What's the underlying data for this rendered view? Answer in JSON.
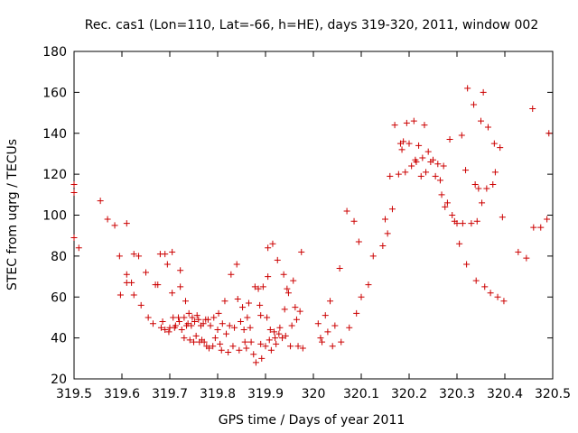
{
  "chart_data": {
    "type": "scatter",
    "title": "Rec. cas1 (Lon=110, Lat=-66, h=HE), days 319-320, 2011, window 002",
    "xlabel": "GPS time / Days of year 2011",
    "ylabel": "STEC from uqrg / TECUs",
    "xlim": [
      319.5,
      320.5
    ],
    "ylim": [
      20,
      180
    ],
    "x_ticks": [
      "319.5",
      "319.6",
      "319.7",
      "319.8",
      "319.9",
      "320",
      "320.1",
      "320.2",
      "320.3",
      "320.4",
      "320.5"
    ],
    "y_ticks": [
      "20",
      "40",
      "60",
      "80",
      "100",
      "120",
      "140",
      "160",
      "180"
    ],
    "grid": false,
    "marker": "plus",
    "color": "#cc0000",
    "points": [
      [
        319.5,
        115
      ],
      [
        319.5,
        111
      ],
      [
        319.5,
        89
      ],
      [
        319.51,
        84
      ],
      [
        319.555,
        107
      ],
      [
        319.57,
        98
      ],
      [
        319.585,
        95
      ],
      [
        319.595,
        80
      ],
      [
        319.597,
        61
      ],
      [
        319.61,
        96
      ],
      [
        319.61,
        71
      ],
      [
        319.61,
        67
      ],
      [
        319.62,
        67
      ],
      [
        319.625,
        81
      ],
      [
        319.625,
        61
      ],
      [
        319.635,
        80
      ],
      [
        319.64,
        56
      ],
      [
        319.65,
        72
      ],
      [
        319.655,
        50
      ],
      [
        319.665,
        47
      ],
      [
        319.67,
        66
      ],
      [
        319.675,
        66
      ],
      [
        319.68,
        81
      ],
      [
        319.682,
        45
      ],
      [
        319.685,
        48
      ],
      [
        319.69,
        81
      ],
      [
        319.69,
        44
      ],
      [
        319.695,
        76
      ],
      [
        319.698,
        43
      ],
      [
        319.7,
        45
      ],
      [
        319.705,
        82
      ],
      [
        319.705,
        62
      ],
      [
        319.707,
        50
      ],
      [
        319.71,
        45
      ],
      [
        319.712,
        46
      ],
      [
        319.718,
        50
      ],
      [
        319.72,
        48
      ],
      [
        319.722,
        73
      ],
      [
        319.722,
        65
      ],
      [
        319.725,
        44
      ],
      [
        319.73,
        50
      ],
      [
        319.73,
        40
      ],
      [
        319.733,
        58
      ],
      [
        319.735,
        46
      ],
      [
        319.738,
        47
      ],
      [
        319.74,
        52
      ],
      [
        319.742,
        39
      ],
      [
        319.745,
        46
      ],
      [
        319.747,
        50
      ],
      [
        319.75,
        38
      ],
      [
        319.752,
        48
      ],
      [
        319.755,
        41
      ],
      [
        319.757,
        51
      ],
      [
        319.76,
        49
      ],
      [
        319.762,
        38
      ],
      [
        319.765,
        46
      ],
      [
        319.767,
        39
      ],
      [
        319.77,
        47
      ],
      [
        319.772,
        38
      ],
      [
        319.775,
        49
      ],
      [
        319.777,
        36
      ],
      [
        319.78,
        49
      ],
      [
        319.782,
        35
      ],
      [
        319.785,
        46
      ],
      [
        319.79,
        36
      ],
      [
        319.792,
        50
      ],
      [
        319.795,
        40
      ],
      [
        319.8,
        44
      ],
      [
        319.802,
        52
      ],
      [
        319.805,
        37
      ],
      [
        319.808,
        34
      ],
      [
        319.81,
        47
      ],
      [
        319.815,
        58
      ],
      [
        319.818,
        42
      ],
      [
        319.822,
        33
      ],
      [
        319.825,
        46
      ],
      [
        319.828,
        71
      ],
      [
        319.832,
        36
      ],
      [
        319.835,
        45
      ],
      [
        319.84,
        76
      ],
      [
        319.842,
        59
      ],
      [
        319.845,
        34
      ],
      [
        319.848,
        48
      ],
      [
        319.852,
        55
      ],
      [
        319.855,
        44
      ],
      [
        319.857,
        38
      ],
      [
        319.86,
        35
      ],
      [
        319.862,
        50
      ],
      [
        319.865,
        57
      ],
      [
        319.868,
        45
      ],
      [
        319.87,
        38
      ],
      [
        319.875,
        32
      ],
      [
        319.878,
        65
      ],
      [
        319.88,
        28
      ],
      [
        319.885,
        64
      ],
      [
        319.888,
        56
      ],
      [
        319.89,
        51
      ],
      [
        319.89,
        37
      ],
      [
        319.892,
        30
      ],
      [
        319.895,
        65
      ],
      [
        319.9,
        36
      ],
      [
        319.903,
        50
      ],
      [
        319.905,
        84
      ],
      [
        319.905,
        70
      ],
      [
        319.908,
        39
      ],
      [
        319.91,
        44
      ],
      [
        319.912,
        34
      ],
      [
        319.915,
        86
      ],
      [
        319.918,
        43
      ],
      [
        319.92,
        40
      ],
      [
        319.922,
        37
      ],
      [
        319.925,
        78
      ],
      [
        319.928,
        42
      ],
      [
        319.93,
        45
      ],
      [
        319.935,
        40
      ],
      [
        319.938,
        71
      ],
      [
        319.94,
        54
      ],
      [
        319.942,
        41
      ],
      [
        319.945,
        64
      ],
      [
        319.948,
        62
      ],
      [
        319.952,
        36
      ],
      [
        319.955,
        46
      ],
      [
        319.958,
        68
      ],
      [
        319.962,
        55
      ],
      [
        319.965,
        49
      ],
      [
        319.968,
        36
      ],
      [
        319.972,
        53
      ],
      [
        319.975,
        82
      ],
      [
        319.978,
        35
      ],
      [
        320.01,
        47
      ],
      [
        320.015,
        40
      ],
      [
        320.018,
        38
      ],
      [
        320.025,
        51
      ],
      [
        320.03,
        43
      ],
      [
        320.035,
        58
      ],
      [
        320.04,
        36
      ],
      [
        320.045,
        46
      ],
      [
        320.055,
        74
      ],
      [
        320.058,
        38
      ],
      [
        320.07,
        102
      ],
      [
        320.075,
        45
      ],
      [
        320.085,
        97
      ],
      [
        320.09,
        52
      ],
      [
        320.095,
        87
      ],
      [
        320.1,
        60
      ],
      [
        320.115,
        66
      ],
      [
        320.125,
        80
      ],
      [
        320.145,
        85
      ],
      [
        320.15,
        98
      ],
      [
        320.155,
        91
      ],
      [
        320.16,
        119
      ],
      [
        320.165,
        103
      ],
      [
        320.17,
        144
      ],
      [
        320.178,
        120
      ],
      [
        320.182,
        135
      ],
      [
        320.185,
        132
      ],
      [
        320.188,
        136
      ],
      [
        320.192,
        121
      ],
      [
        320.195,
        145
      ],
      [
        320.2,
        135
      ],
      [
        320.205,
        124
      ],
      [
        320.21,
        146
      ],
      [
        320.213,
        127
      ],
      [
        320.215,
        126
      ],
      [
        320.22,
        134
      ],
      [
        320.225,
        119
      ],
      [
        320.228,
        128
      ],
      [
        320.232,
        144
      ],
      [
        320.235,
        121
      ],
      [
        320.24,
        131
      ],
      [
        320.245,
        126
      ],
      [
        320.25,
        127
      ],
      [
        320.255,
        119
      ],
      [
        320.26,
        125
      ],
      [
        320.265,
        117
      ],
      [
        320.268,
        110
      ],
      [
        320.272,
        124
      ],
      [
        320.275,
        104
      ],
      [
        320.28,
        106
      ],
      [
        320.285,
        137
      ],
      [
        320.29,
        100
      ],
      [
        320.295,
        97
      ],
      [
        320.3,
        96
      ],
      [
        320.305,
        86
      ],
      [
        320.31,
        139
      ],
      [
        320.312,
        96
      ],
      [
        320.318,
        122
      ],
      [
        320.32,
        76
      ],
      [
        320.322,
        162
      ],
      [
        320.33,
        96
      ],
      [
        320.335,
        154
      ],
      [
        320.338,
        115
      ],
      [
        320.34,
        68
      ],
      [
        320.342,
        97
      ],
      [
        320.345,
        113
      ],
      [
        320.35,
        146
      ],
      [
        320.352,
        106
      ],
      [
        320.355,
        160
      ],
      [
        320.358,
        65
      ],
      [
        320.362,
        113
      ],
      [
        320.365,
        143
      ],
      [
        320.37,
        62
      ],
      [
        320.375,
        115
      ],
      [
        320.378,
        135
      ],
      [
        320.38,
        121
      ],
      [
        320.385,
        60
      ],
      [
        320.39,
        133
      ],
      [
        320.395,
        99
      ],
      [
        320.398,
        58
      ],
      [
        320.428,
        82
      ],
      [
        320.445,
        79
      ],
      [
        320.458,
        152
      ],
      [
        320.46,
        94
      ],
      [
        320.475,
        94
      ],
      [
        320.488,
        98
      ],
      [
        320.492,
        140
      ]
    ]
  }
}
